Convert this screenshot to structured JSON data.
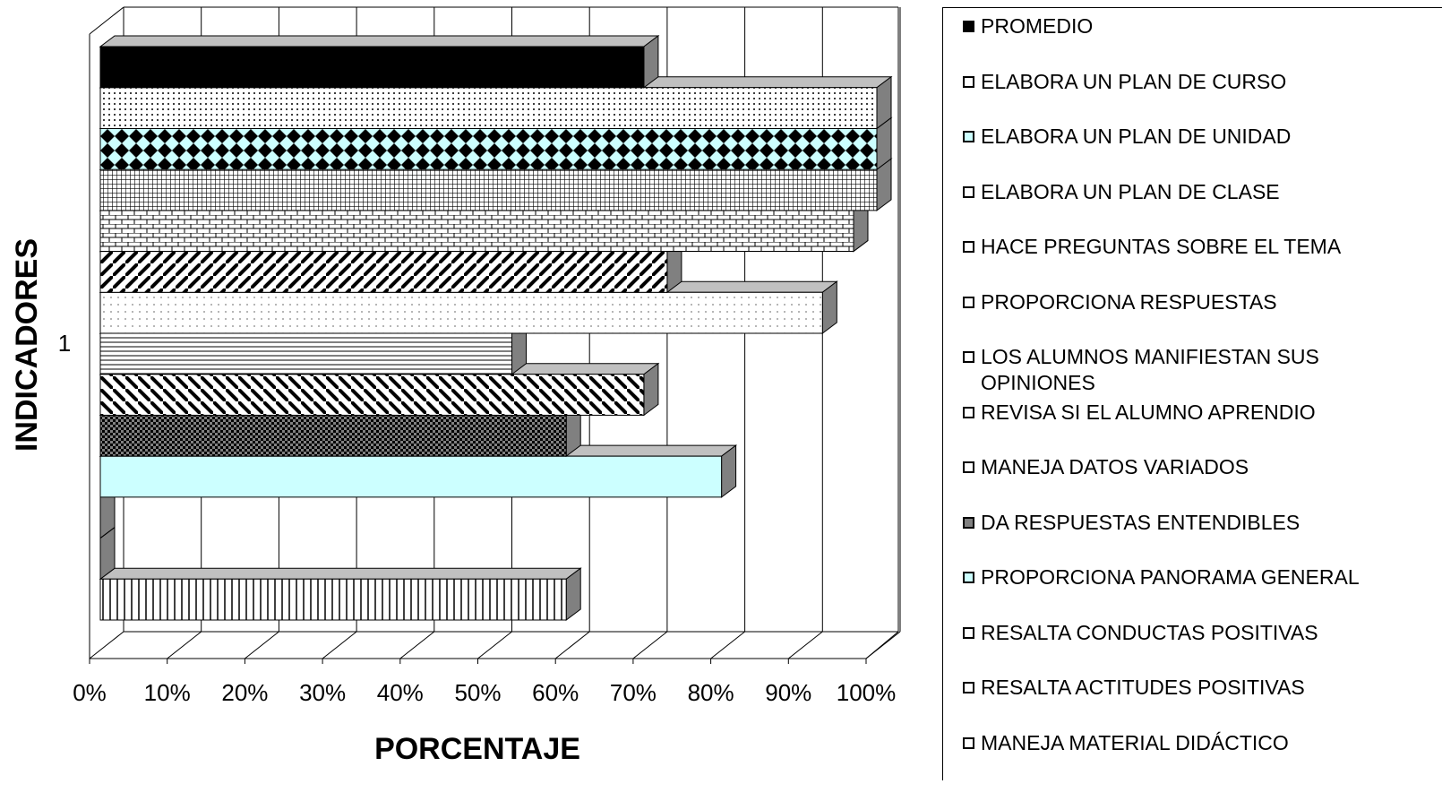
{
  "chart_data": {
    "type": "bar",
    "orientation": "horizontal",
    "three_d": true,
    "x_label": "PORCENTAJE",
    "y_label": "INDICADORES",
    "categories": [
      "1"
    ],
    "xlim": [
      0,
      100
    ],
    "xticks": [
      {
        "value": 0,
        "label": "0%"
      },
      {
        "value": 10,
        "label": "10%"
      },
      {
        "value": 20,
        "label": "20%"
      },
      {
        "value": 30,
        "label": "30%"
      },
      {
        "value": 40,
        "label": "40%"
      },
      {
        "value": 50,
        "label": "50%"
      },
      {
        "value": 60,
        "label": "60%"
      },
      {
        "value": 70,
        "label": "70%"
      },
      {
        "value": 80,
        "label": "80%"
      },
      {
        "value": 90,
        "label": "90%"
      },
      {
        "value": 100,
        "label": "100%"
      }
    ],
    "grid": true,
    "legend": "right",
    "series": [
      {
        "name": "PROMEDIO",
        "color": "#000000",
        "values": [
          70
        ]
      },
      {
        "name": "ELABORA UN PLAN DE CURSO",
        "color": "#ffffff",
        "values": [
          100
        ]
      },
      {
        "name": "ELABORA UN PLAN DE UNIDAD",
        "color": "#ccffff",
        "values": [
          100
        ]
      },
      {
        "name": "ELABORA UN PLAN DE CLASE",
        "color": "#ffffff",
        "values": [
          100
        ]
      },
      {
        "name": "HACE PREGUNTAS SOBRE EL TEMA",
        "color": "#ffffff",
        "values": [
          97
        ]
      },
      {
        "name": "PROPORCIONA RESPUESTAS",
        "color": "#ffffff",
        "values": [
          73
        ]
      },
      {
        "name": "LOS ALUMNOS MANIFIESTAN SUS OPINIONES",
        "color": "#ffffff",
        "values": [
          93
        ]
      },
      {
        "name": "REVISA SI EL ALUMNO APRENDIO",
        "color": "#ffffff",
        "values": [
          53
        ]
      },
      {
        "name": "MANEJA DATOS VARIADOS",
        "color": "#ffffff",
        "values": [
          70
        ]
      },
      {
        "name": "DA RESPUESTAS ENTENDIBLES",
        "color": "#808080",
        "values": [
          60
        ]
      },
      {
        "name": "PROPORCIONA PANORAMA GENERAL",
        "color": "#ccffff",
        "values": [
          80
        ]
      },
      {
        "name": "RESALTA CONDUCTAS POSITIVAS",
        "color": "#ffffff",
        "values": [
          0
        ]
      },
      {
        "name": "RESALTA ACTITUDES POSITIVAS",
        "color": "#ffffff",
        "values": [
          0
        ]
      },
      {
        "name": "MANEJA MATERIAL DIDÁCTICO",
        "color": "#ffffff",
        "values": [
          60
        ]
      }
    ]
  }
}
